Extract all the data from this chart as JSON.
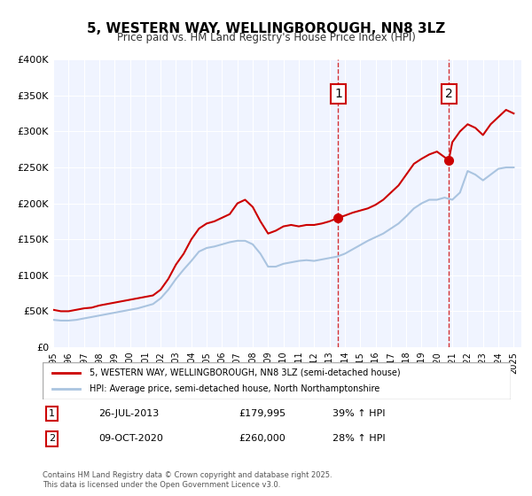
{
  "title": "5, WESTERN WAY, WELLINGBOROUGH, NN8 3LZ",
  "subtitle": "Price paid vs. HM Land Registry's House Price Index (HPI)",
  "xlabel": "",
  "ylabel": "",
  "background_color": "#f0f4ff",
  "plot_bg_color": "#f0f4ff",
  "red_line_color": "#cc0000",
  "blue_line_color": "#aac4e0",
  "marker1_date": 2013.57,
  "marker2_date": 2020.77,
  "marker1_value": 179995,
  "marker2_value": 260000,
  "annotation1_label": "1",
  "annotation2_label": "2",
  "legend_red": "5, WESTERN WAY, WELLINGBOROUGH, NN8 3LZ (semi-detached house)",
  "legend_blue": "HPI: Average price, semi-detached house, North Northamptonshire",
  "table_row1": [
    "1",
    "26-JUL-2013",
    "£179,995",
    "39% ↑ HPI"
  ],
  "table_row2": [
    "2",
    "09-OCT-2020",
    "£260,000",
    "28% ↑ HPI"
  ],
  "footer": "Contains HM Land Registry data © Crown copyright and database right 2025.\nThis data is licensed under the Open Government Licence v3.0.",
  "ylim": [
    0,
    400000
  ],
  "xlim": [
    1995,
    2025.5
  ],
  "yticks": [
    0,
    50000,
    100000,
    150000,
    200000,
    250000,
    300000,
    350000,
    400000
  ],
  "ytick_labels": [
    "£0",
    "£50K",
    "£100K",
    "£150K",
    "£200K",
    "£250K",
    "£300K",
    "£350K",
    "£400K"
  ],
  "red_x": [
    1995.0,
    1995.5,
    1996.0,
    1996.5,
    1997.0,
    1997.5,
    1998.0,
    1998.5,
    1999.0,
    1999.5,
    2000.0,
    2000.5,
    2001.0,
    2001.5,
    2002.0,
    2002.5,
    2003.0,
    2003.5,
    2004.0,
    2004.5,
    2005.0,
    2005.5,
    2006.0,
    2006.5,
    2007.0,
    2007.5,
    2008.0,
    2008.5,
    2009.0,
    2009.5,
    2010.0,
    2010.5,
    2011.0,
    2011.5,
    2012.0,
    2012.5,
    2013.0,
    2013.57,
    2014.0,
    2014.5,
    2015.0,
    2015.5,
    2016.0,
    2016.5,
    2017.0,
    2017.5,
    2018.0,
    2018.5,
    2019.0,
    2019.5,
    2020.0,
    2020.77,
    2021.0,
    2021.5,
    2022.0,
    2022.5,
    2023.0,
    2023.5,
    2024.0,
    2024.5,
    2025.0
  ],
  "red_y": [
    52000,
    50000,
    50000,
    52000,
    54000,
    55000,
    58000,
    60000,
    62000,
    64000,
    66000,
    68000,
    70000,
    72000,
    80000,
    95000,
    115000,
    130000,
    150000,
    165000,
    172000,
    175000,
    180000,
    185000,
    200000,
    205000,
    195000,
    175000,
    158000,
    162000,
    168000,
    170000,
    168000,
    170000,
    170000,
    172000,
    175000,
    179995,
    183000,
    187000,
    190000,
    193000,
    198000,
    205000,
    215000,
    225000,
    240000,
    255000,
    262000,
    268000,
    272000,
    260000,
    285000,
    300000,
    310000,
    305000,
    295000,
    310000,
    320000,
    330000,
    325000
  ],
  "blue_x": [
    1995.0,
    1995.5,
    1996.0,
    1996.5,
    1997.0,
    1997.5,
    1998.0,
    1998.5,
    1999.0,
    1999.5,
    2000.0,
    2000.5,
    2001.0,
    2001.5,
    2002.0,
    2002.5,
    2003.0,
    2003.5,
    2004.0,
    2004.5,
    2005.0,
    2005.5,
    2006.0,
    2006.5,
    2007.0,
    2007.5,
    2008.0,
    2008.5,
    2009.0,
    2009.5,
    2010.0,
    2010.5,
    2011.0,
    2011.5,
    2012.0,
    2012.5,
    2013.0,
    2013.5,
    2014.0,
    2014.5,
    2015.0,
    2015.5,
    2016.0,
    2016.5,
    2017.0,
    2017.5,
    2018.0,
    2018.5,
    2019.0,
    2019.5,
    2020.0,
    2020.5,
    2021.0,
    2021.5,
    2022.0,
    2022.5,
    2023.0,
    2023.5,
    2024.0,
    2024.5,
    2025.0
  ],
  "blue_y": [
    38000,
    37000,
    37000,
    38000,
    40000,
    42000,
    44000,
    46000,
    48000,
    50000,
    52000,
    54000,
    57000,
    60000,
    68000,
    80000,
    95000,
    108000,
    120000,
    133000,
    138000,
    140000,
    143000,
    146000,
    148000,
    148000,
    143000,
    130000,
    112000,
    112000,
    116000,
    118000,
    120000,
    121000,
    120000,
    122000,
    124000,
    126000,
    130000,
    136000,
    142000,
    148000,
    153000,
    158000,
    165000,
    172000,
    182000,
    193000,
    200000,
    205000,
    205000,
    208000,
    205000,
    215000,
    245000,
    240000,
    232000,
    240000,
    248000,
    250000,
    250000
  ]
}
